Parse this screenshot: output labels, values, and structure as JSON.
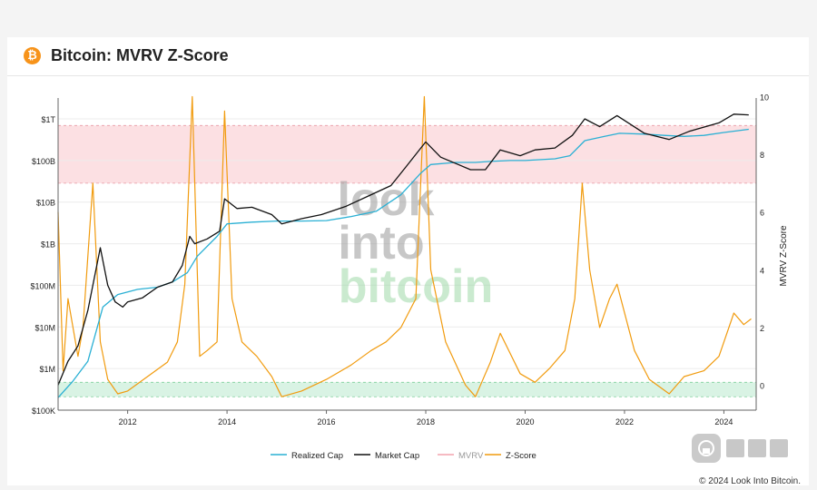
{
  "header": {
    "title": "Bitcoin: MVRV Z-Score",
    "icon": "bitcoin-icon",
    "icon_glyph": "₿"
  },
  "footer": {
    "copyright": "© 2024 Look Into Bitcoin."
  },
  "watermark": {
    "line1": "look",
    "line2": "into",
    "line3": "bitcoin"
  },
  "colors": {
    "realized": "#2ab0d4",
    "market": "#111111",
    "mvrv": "#f4a3ae",
    "zscore": "#f19b0e",
    "zone_top": "#fbd6da",
    "zone_bottom": "#c9eed8"
  },
  "chart_data": {
    "type": "line",
    "title": "Bitcoin: MVRV Z-Score",
    "x_ticks": [
      "2012",
      "2014",
      "2016",
      "2018",
      "2020",
      "2022",
      "2024"
    ],
    "x_range": [
      2010.6,
      2024.65
    ],
    "y_left": {
      "scale": "log",
      "ticks": [
        "$1T",
        "$100B",
        "$10B",
        "$1B",
        "$100M",
        "$10M",
        "$1M",
        "$100K"
      ],
      "range": [
        100000,
        1000000000000
      ]
    },
    "y_right": {
      "label": "MVRV Z-Score",
      "ticks": [
        "10",
        "8",
        "6",
        "4",
        "2",
        "0"
      ],
      "range": [
        -0.7,
        10
      ]
    },
    "zones": {
      "top": [
        7,
        9
      ],
      "bottom": [
        -0.4,
        0.1
      ]
    },
    "legend": {
      "position": "bottom",
      "items": [
        "Realized Cap",
        "Market Cap",
        "MVRV",
        "Z-Score"
      ]
    },
    "series": [
      {
        "name": "Market Cap",
        "axis": "left",
        "x": [
          2010.6,
          2010.8,
          2011.0,
          2011.2,
          2011.45,
          2011.6,
          2011.75,
          2011.9,
          2012.0,
          2012.3,
          2012.6,
          2012.9,
          2013.1,
          2013.25,
          2013.35,
          2013.6,
          2013.85,
          2013.95,
          2014.2,
          2014.5,
          2014.9,
          2015.1,
          2015.5,
          2015.9,
          2016.4,
          2016.9,
          2017.3,
          2017.6,
          2017.9,
          2018.0,
          2018.3,
          2018.9,
          2019.2,
          2019.5,
          2019.9,
          2020.2,
          2020.6,
          2020.95,
          2021.2,
          2021.5,
          2021.85,
          2022.4,
          2022.9,
          2023.3,
          2023.9,
          2024.2,
          2024.5
        ],
        "y": [
          400000,
          1500000,
          3500000,
          25000000,
          800000000,
          100000000,
          40000000,
          30000000,
          40000000,
          50000000,
          90000000,
          120000000,
          300000000,
          1500000000,
          1000000000,
          1300000000,
          2000000000,
          12000000000,
          7000000000,
          7500000000,
          5000000000,
          3000000000,
          4000000000,
          5000000000,
          8000000000,
          15000000000,
          25000000000,
          70000000000,
          200000000000,
          280000000000,
          120000000000,
          60000000000,
          60000000000,
          180000000000,
          130000000000,
          180000000000,
          200000000000,
          400000000000,
          1000000000000,
          650000000000,
          1200000000000,
          450000000000,
          320000000000,
          500000000000,
          800000000000,
          1300000000000,
          1250000000000
        ]
      },
      {
        "name": "Realized Cap",
        "axis": "left",
        "x": [
          2010.6,
          2010.9,
          2011.2,
          2011.5,
          2011.8,
          2012.2,
          2012.6,
          2012.9,
          2013.2,
          2013.4,
          2013.8,
          2014.0,
          2014.5,
          2015.0,
          2015.5,
          2016.0,
          2016.5,
          2017.0,
          2017.5,
          2017.9,
          2018.1,
          2018.6,
          2019.0,
          2019.3,
          2019.7,
          2020.0,
          2020.6,
          2020.9,
          2021.2,
          2021.6,
          2021.9,
          2022.4,
          2022.8,
          2023.2,
          2023.6,
          2024.0,
          2024.5
        ],
        "y": [
          200000,
          500000,
          1500000,
          30000000,
          60000000,
          80000000,
          90000000,
          120000000,
          200000000,
          500000000,
          1500000000,
          3000000000,
          3300000000,
          3500000000,
          3500000000,
          3600000000,
          4500000000,
          6000000000,
          15000000000,
          50000000000,
          80000000000,
          90000000000,
          90000000000,
          95000000000,
          100000000000,
          100000000000,
          110000000000,
          130000000000,
          300000000000,
          380000000000,
          450000000000,
          430000000000,
          400000000000,
          380000000000,
          400000000000,
          470000000000,
          560000000000
        ]
      },
      {
        "name": "Z-Score",
        "axis": "right",
        "x": [
          2010.6,
          2010.7,
          2010.8,
          2011.0,
          2011.1,
          2011.3,
          2011.45,
          2011.6,
          2011.8,
          2012.0,
          2012.4,
          2012.8,
          2013.0,
          2013.15,
          2013.3,
          2013.45,
          2013.6,
          2013.8,
          2013.95,
          2014.1,
          2014.3,
          2014.6,
          2014.9,
          2015.1,
          2015.5,
          2016.0,
          2016.5,
          2016.9,
          2017.2,
          2017.5,
          2017.8,
          2017.97,
          2018.1,
          2018.4,
          2018.8,
          2019.0,
          2019.3,
          2019.5,
          2019.9,
          2020.2,
          2020.5,
          2020.8,
          2021.0,
          2021.15,
          2021.3,
          2021.5,
          2021.7,
          2021.85,
          2022.2,
          2022.5,
          2022.9,
          2023.2,
          2023.6,
          2023.9,
          2024.2,
          2024.4,
          2024.55
        ],
        "y": [
          6,
          0.5,
          3,
          1,
          2,
          7,
          1.5,
          0.2,
          -0.3,
          -0.2,
          0.3,
          0.8,
          1.5,
          3.5,
          10,
          1,
          1.2,
          1.5,
          9.5,
          3,
          1.5,
          1,
          0.3,
          -0.4,
          -0.2,
          0.2,
          0.7,
          1.2,
          1.5,
          2,
          3,
          10,
          4,
          1.5,
          0,
          -0.4,
          0.8,
          1.8,
          0.4,
          0.1,
          0.6,
          1.2,
          3,
          7,
          4,
          2,
          3,
          3.5,
          1.2,
          0.2,
          -0.3,
          0.3,
          0.5,
          1,
          2.5,
          2.1,
          2.3
        ]
      }
    ]
  }
}
